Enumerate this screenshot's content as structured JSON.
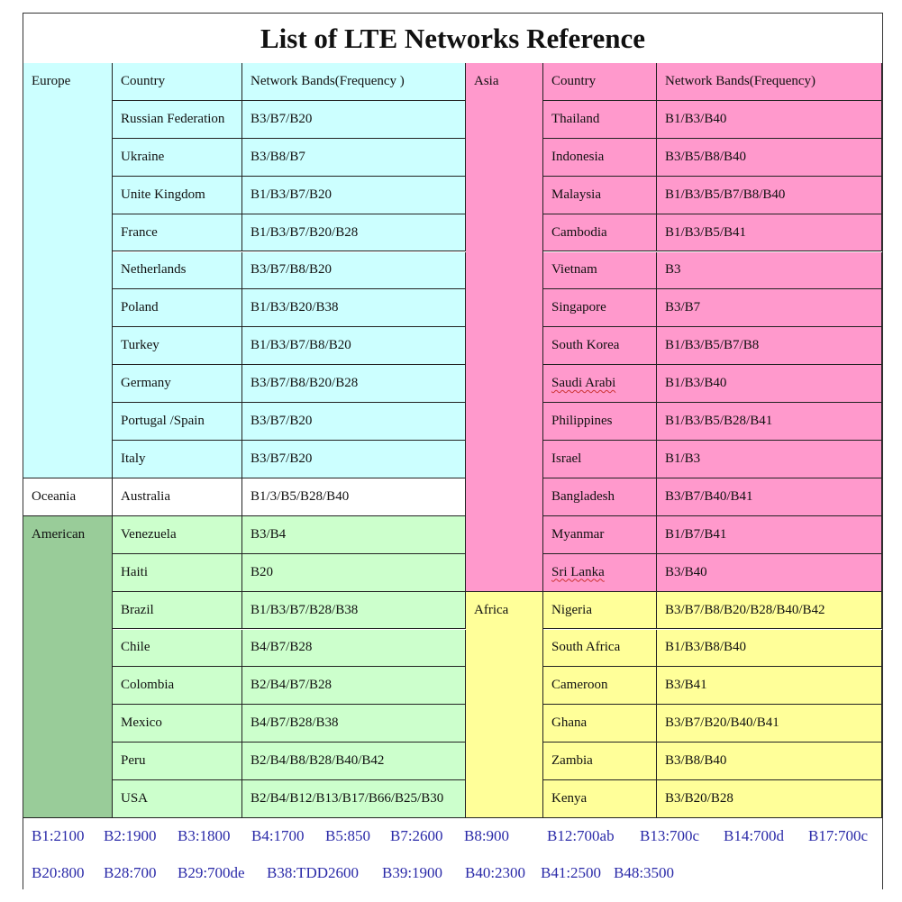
{
  "title": "List of LTE Networks Reference",
  "colors": {
    "europe": "#ccffff",
    "oceania": "#ffffff",
    "american_region": "#99cc99",
    "american": "#ccffcc",
    "asia": "#ff99cc",
    "africa": "#ffff99",
    "legend_text": "#2a2aa8"
  },
  "left": {
    "header": {
      "region": "Europe",
      "country": "Country",
      "bands": "Network Bands(Frequency )"
    },
    "groups": [
      {
        "region": "Europe",
        "key": "europe",
        "rows": [
          [
            "Russian Federation",
            "B3/B7/B20"
          ],
          [
            "Ukraine",
            "B3/B8/B7"
          ],
          [
            "Unite Kingdom",
            "B1/B3/B7/B20"
          ],
          [
            "France",
            "B1/B3/B7/B20/B28"
          ],
          [
            "Netherlands",
            "B3/B7/B8/B20"
          ],
          [
            "Poland",
            "B1/B3/B20/B38"
          ],
          [
            "Turkey",
            "B1/B3/B7/B8/B20"
          ],
          [
            "Germany",
            "B3/B7/B8/B20/B28"
          ],
          [
            "Portugal /Spain",
            "B3/B7/B20"
          ],
          [
            "Italy",
            "B3/B7/B20"
          ]
        ]
      },
      {
        "region": "Oceania",
        "key": "oceania",
        "rows": [
          [
            "Australia",
            "B1/3/B5/B28/B40"
          ]
        ]
      },
      {
        "region": "American",
        "key": "american",
        "rows": [
          [
            "Venezuela",
            "B3/B4"
          ],
          [
            "Haiti",
            "B20"
          ],
          [
            "Brazil",
            "B1/B3/B7/B28/B38"
          ],
          [
            "Chile",
            "B4/B7/B28"
          ],
          [
            "Colombia",
            "B2/B4/B7/B28"
          ],
          [
            "Mexico",
            "B4/B7/B28/B38"
          ],
          [
            "Peru",
            "B2/B4/B8/B28/B40/B42"
          ],
          [
            "USA",
            "B2/B4/B12/B13/B17/B66/B25/B30"
          ]
        ]
      }
    ]
  },
  "right": {
    "header": {
      "region": "Asia",
      "country": "Country",
      "bands": "Network Bands(Frequency)"
    },
    "groups": [
      {
        "region": "Asia",
        "key": "asia",
        "rows": [
          [
            "Thailand",
            "B1/B3/B40"
          ],
          [
            "Indonesia",
            "B3/B5/B8/B40"
          ],
          [
            "Malaysia",
            "B1/B3/B5/B7/B8/B40"
          ],
          [
            "Cambodia",
            "B1/B3/B5/B41"
          ],
          [
            "Vietnam",
            "B3"
          ],
          [
            "Singapore",
            "B3/B7"
          ],
          [
            "South Korea",
            "B1/B3/B5/B7/B8"
          ],
          [
            "Saudi Arabi",
            "B1/B3/B40"
          ],
          [
            "Philippines",
            "B1/B3/B5/B28/B41"
          ],
          [
            "Israel",
            "B1/B3"
          ],
          [
            "Bangladesh",
            "B3/B7/B40/B41"
          ],
          [
            "Myanmar",
            "B1/B7/B41"
          ],
          [
            "Sri Lanka",
            "B3/B40"
          ]
        ]
      },
      {
        "region": "Africa",
        "key": "africa",
        "rows": [
          [
            "Nigeria",
            "B3/B7/B8/B20/B28/B40/B42"
          ],
          [
            "South Africa",
            "B1/B3/B8/B40"
          ],
          [
            "Cameroon",
            "B3/B41"
          ],
          [
            "Ghana",
            "B3/B7/B20/B40/B41"
          ],
          [
            "Zambia",
            "B3/B8/B40"
          ],
          [
            "Kenya",
            "B3/B20/B28"
          ]
        ]
      }
    ]
  },
  "legend": [
    [
      "B1:2100",
      "B2:1900",
      "B3:1800",
      "B4:1700",
      "B5:850",
      "B7:2600",
      "B8:900",
      "B12:700ab",
      "B13:700c",
      "B14:700d",
      "B17:700c"
    ],
    [
      "B20:800",
      "B28:700",
      "B29:700de",
      "B38:TDD2600",
      "B39:1900",
      "B40:2300",
      "B41:2500",
      "B48:3500"
    ]
  ]
}
